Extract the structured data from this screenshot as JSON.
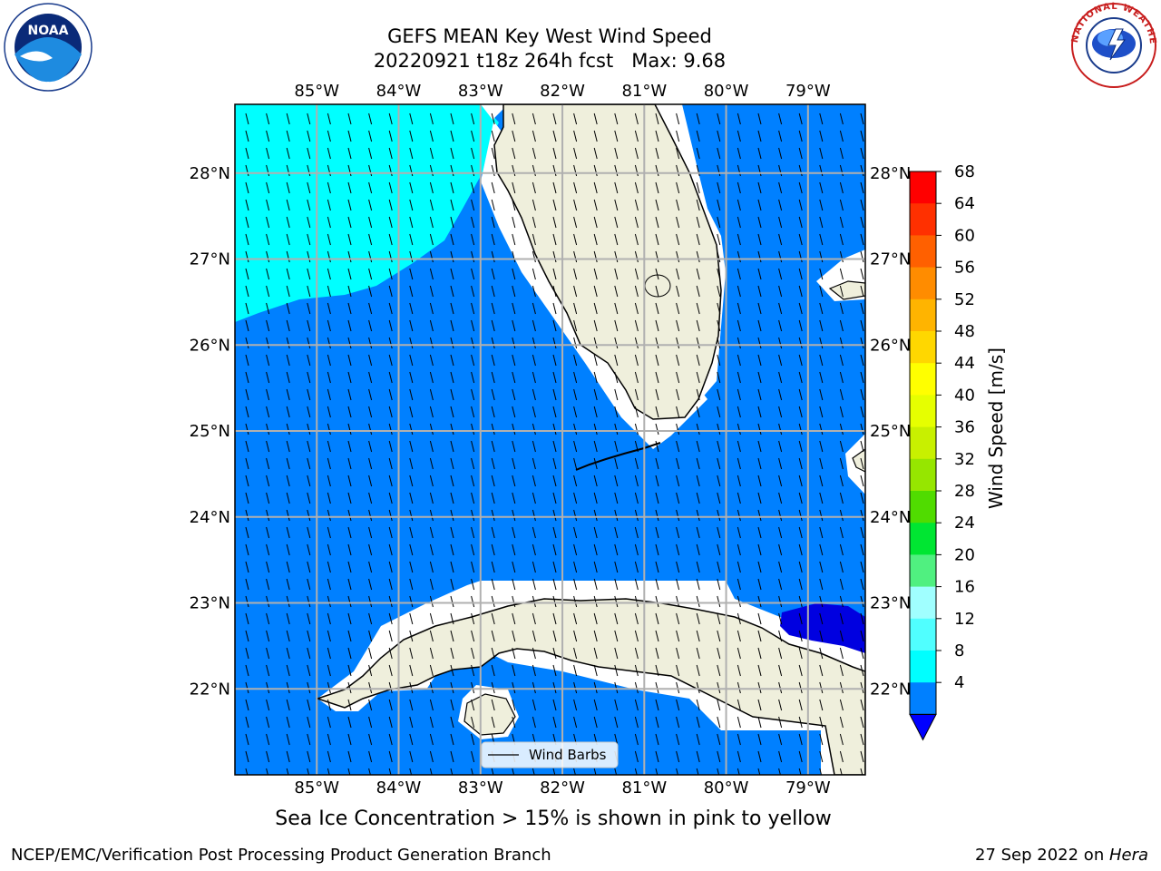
{
  "header": {
    "title_line1": "GEFS MEAN Key West Wind Speed",
    "title_line2": "20220921 t18z 264h fcst   Max: 9.68",
    "noara_logo_text": "NOAA",
    "nws_logo_text": "NATIONAL WEATHER SERVICE"
  },
  "map": {
    "lon_labels": [
      "85°W",
      "84°W",
      "83°W",
      "82°W",
      "81°W",
      "80°W",
      "79°W"
    ],
    "lat_labels": [
      "28°N",
      "27°N",
      "26°N",
      "25°N",
      "24°N",
      "23°N",
      "22°N"
    ],
    "extent": {
      "lon_min": -86.0,
      "lon_max": -78.3,
      "lat_min": 21.0,
      "lat_max": 28.8
    },
    "legend_label": "Wind Barbs",
    "colors": {
      "ocean_band_4_8": "#0080ff",
      "band_8_12": "#00ffff",
      "band_below_4": "#0000e0",
      "land": "#efefdc",
      "grid": "#b0b0b0"
    }
  },
  "colorbar": {
    "label": "Wind Speed [m/s]",
    "ticks": [
      "68",
      "64",
      "60",
      "56",
      "52",
      "48",
      "44",
      "40",
      "36",
      "32",
      "28",
      "24",
      "20",
      "16",
      "12",
      "8",
      "4"
    ],
    "colors": [
      "#ff0000",
      "#ff3000",
      "#ff6000",
      "#ff8c00",
      "#ffb400",
      "#ffd700",
      "#ffff00",
      "#e6ff00",
      "#c8f000",
      "#96e600",
      "#50dc00",
      "#00e632",
      "#50f080",
      "#a0ffff",
      "#50ffff",
      "#00ffff",
      "#0080ff"
    ],
    "extend_color": "#0000ff"
  },
  "caption": "Sea Ice Concentration > 15% is shown in pink to yellow",
  "footer": {
    "left": "NCEP/EMC/Verification Post Processing Product Generation Branch",
    "right_date": "27 Sep 2022 on ",
    "right_host": "Hera"
  }
}
